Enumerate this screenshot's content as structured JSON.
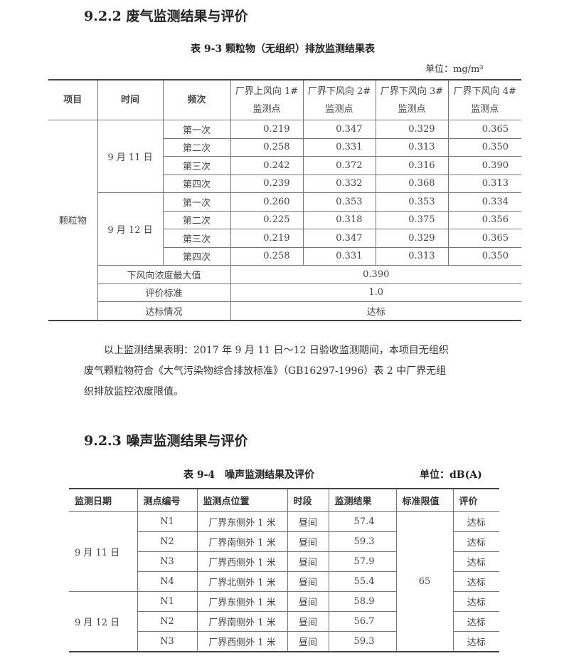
{
  "section1_title": "9.2.2 废气监测结果与评价",
  "table1": {
    "caption": "表 9-3  颗粒物（无组织）排放监测结果表",
    "unit": "单位：mg/m³",
    "headers": [
      "项目",
      "时间",
      "频次",
      "厂界上风向 1# 监测点",
      "厂界下风向 2# 监测点",
      "厂界下风向 3# 监测点",
      "厂界下风向 4# 监测点"
    ],
    "item": "颗粒物",
    "groups": [
      {
        "date": "9 月 11 日",
        "rows": [
          {
            "freq": "第一次",
            "values": [
              "0.219",
              "0.347",
              "0.329",
              "0.365"
            ]
          },
          {
            "freq": "第二次",
            "values": [
              "0.258",
              "0.331",
              "0.313",
              "0.350"
            ]
          },
          {
            "freq": "第三次",
            "values": [
              "0.242",
              "0.372",
              "0.316",
              "0.390"
            ]
          },
          {
            "freq": "第四次",
            "values": [
              "0.239",
              "0.332",
              "0.368",
              "0.313"
            ]
          }
        ]
      },
      {
        "date": "9 月 12 日",
        "rows": [
          {
            "freq": "第一次",
            "values": [
              "0.260",
              "0.353",
              "0.353",
              "0.334"
            ]
          },
          {
            "freq": "第二次",
            "values": [
              "0.225",
              "0.318",
              "0.375",
              "0.356"
            ]
          },
          {
            "freq": "第三次",
            "values": [
              "0.219",
              "0.347",
              "0.329",
              "0.365"
            ]
          },
          {
            "freq": "第四次",
            "values": [
              "0.258",
              "0.331",
              "0.313",
              "0.350"
            ]
          }
        ]
      }
    ],
    "summary": [
      {
        "label": "下风向浓度最大值",
        "value": "0.390"
      },
      {
        "label": "评价标准",
        "value": "1.0"
      },
      {
        "label": "达标情况",
        "value": "达标"
      }
    ]
  },
  "paragraph": [
    "　　以上监测结果表明：2017 年 9 月 11 日～12 日验收监测期间，本项目无组织",
    "废气颗粒物符合《大气污染物综合排放标准》（GB16297-1996）表 2 中厂界无组",
    "织排放监控浓度限值。"
  ],
  "section2_title": "9.2.3 噪声监测结果与评价",
  "table2": {
    "caption": "表 9-4　噪声监测结果及评价",
    "unit": "单位：dB(A)",
    "headers": [
      "监测日期",
      "测点编号",
      "监测点位置",
      "时段",
      "监测结果",
      "标准限值",
      "评价"
    ],
    "limit": "65",
    "groups": [
      {
        "date": "9 月 11 日",
        "rows": [
          {
            "id": "N1",
            "location": "厂界东侧外 1 米",
            "period": "昼间",
            "result": "57.4",
            "eval": "达标"
          },
          {
            "id": "N2",
            "location": "厂界南侧外 1 米",
            "period": "昼间",
            "result": "59.3",
            "eval": "达标"
          },
          {
            "id": "N3",
            "location": "厂界西侧外 1 米",
            "period": "昼间",
            "result": "57.9",
            "eval": "达标"
          },
          {
            "id": "N4",
            "location": "厂界北侧外 1 米",
            "period": "昼间",
            "result": "55.4",
            "eval": "达标"
          }
        ]
      },
      {
        "date": "9 月 12 日",
        "rows": [
          {
            "id": "N1",
            "location": "厂界东侧外 1 米",
            "period": "昼间",
            "result": "58.9",
            "eval": "达标"
          },
          {
            "id": "N2",
            "location": "厂界南侧外 1 米",
            "period": "昼间",
            "result": "56.7",
            "eval": "达标"
          },
          {
            "id": "N3",
            "location": "厂界西侧外 1 米",
            "period": "昼间",
            "result": "59.3",
            "eval": "达标"
          }
        ]
      }
    ]
  }
}
